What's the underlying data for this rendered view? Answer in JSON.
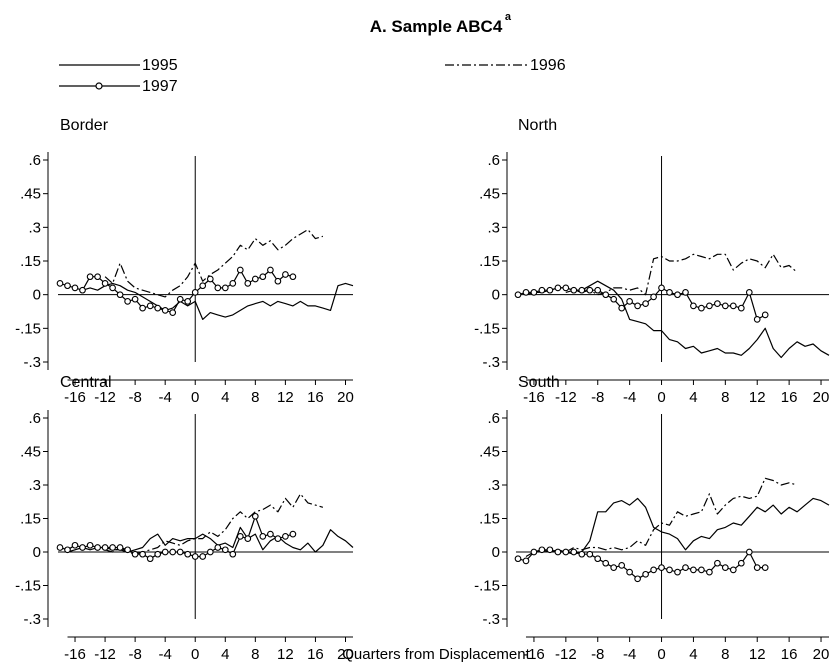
{
  "figure": {
    "title": "A. Sample ABC4",
    "title_superscript": "a",
    "xlabel": "Quarters from Displacement"
  },
  "legend": {
    "position": "top",
    "items": [
      {
        "label": "1995",
        "style": "solid"
      },
      {
        "label": "1996",
        "style": "dash-dot"
      },
      {
        "label": "1997",
        "style": "solid-circle"
      }
    ]
  },
  "chart_data": [
    {
      "type": "line",
      "title": "Border",
      "xlim": [
        -18,
        21
      ],
      "ylim": [
        -0.3,
        0.6
      ],
      "xticks": [
        "-16",
        "-12",
        "-8",
        "-4",
        "0",
        "4",
        "8",
        "12",
        "16",
        "20"
      ],
      "yticks": [
        ".6",
        ".45",
        ".3",
        ".15",
        "0",
        "-.15",
        "-.3"
      ],
      "series": [
        {
          "name": "1995",
          "x": [
            -15,
            -14,
            -13,
            -12,
            -11,
            -10,
            -9,
            -8,
            -7,
            -6,
            -5,
            -4,
            -3,
            -2,
            -1,
            0,
            1,
            2,
            3,
            4,
            5,
            6,
            7,
            8,
            9,
            10,
            11,
            12,
            13,
            14,
            15,
            16,
            17,
            18,
            19,
            20,
            21
          ],
          "y": [
            0.02,
            0.03,
            0.02,
            0.04,
            0.05,
            0.04,
            0.02,
            0.01,
            -0.01,
            -0.03,
            -0.05,
            -0.07,
            -0.06,
            -0.03,
            -0.05,
            -0.03,
            -0.11,
            -0.08,
            -0.09,
            -0.1,
            -0.09,
            -0.07,
            -0.05,
            -0.04,
            -0.03,
            -0.05,
            -0.03,
            -0.04,
            -0.05,
            -0.03,
            -0.05,
            -0.05,
            -0.06,
            -0.07,
            0.04,
            0.05,
            0.04
          ]
        },
        {
          "name": "1996",
          "x": [
            -12,
            -11,
            -10,
            -9,
            -8,
            -7,
            -6,
            -5,
            -4,
            -3,
            -2,
            -1,
            0,
            1,
            2,
            3,
            4,
            5,
            6,
            7,
            8,
            9,
            10,
            11,
            12,
            13,
            14,
            15,
            16,
            17
          ],
          "y": [
            0.08,
            0.05,
            0.14,
            0.06,
            0.03,
            0.02,
            0.01,
            0.0,
            -0.01,
            0.02,
            0.04,
            0.08,
            0.14,
            0.06,
            0.09,
            0.11,
            0.14,
            0.17,
            0.22,
            0.2,
            0.25,
            0.22,
            0.24,
            0.2,
            0.22,
            0.25,
            0.27,
            0.29,
            0.25,
            0.26
          ]
        },
        {
          "name": "1997",
          "x": [
            -18,
            -17,
            -16,
            -15,
            -14,
            -13,
            -12,
            -11,
            -10,
            -9,
            -8,
            -7,
            -6,
            -5,
            -4,
            -3,
            -2,
            -1,
            0,
            1,
            2,
            3,
            4,
            5,
            6,
            7,
            8,
            9,
            10,
            11,
            12,
            13
          ],
          "y": [
            0.05,
            0.04,
            0.03,
            0.02,
            0.08,
            0.08,
            0.05,
            0.03,
            0.0,
            -0.03,
            -0.02,
            -0.06,
            -0.05,
            -0.06,
            -0.07,
            -0.08,
            -0.02,
            -0.03,
            0.01,
            0.04,
            0.07,
            0.03,
            0.03,
            0.05,
            0.11,
            0.05,
            0.07,
            0.08,
            0.11,
            0.06,
            0.09,
            0.08
          ]
        }
      ]
    },
    {
      "type": "line",
      "title": "North",
      "xlim": [
        -18,
        21
      ],
      "ylim": [
        -0.3,
        0.6
      ],
      "xticks": [
        "-16",
        "-12",
        "-8",
        "-4",
        "0",
        "4",
        "8",
        "12",
        "16",
        "20"
      ],
      "yticks": [
        ".6",
        ".45",
        ".3",
        ".15",
        "0",
        "-.15",
        "-.3"
      ],
      "series": [
        {
          "name": "1995",
          "x": [
            -17,
            -16,
            -15,
            -14,
            -13,
            -12,
            -11,
            -10,
            -9,
            -8,
            -7,
            -6,
            -5,
            -4,
            -3,
            -2,
            -1,
            0,
            1,
            2,
            3,
            4,
            5,
            6,
            7,
            8,
            9,
            10,
            11,
            12,
            13,
            14,
            15,
            16,
            17,
            18,
            19,
            20,
            21
          ],
          "y": [
            0.0,
            0.01,
            0.01,
            0.02,
            0.03,
            0.03,
            0.02,
            0.02,
            0.04,
            0.06,
            0.04,
            0.02,
            -0.02,
            -0.11,
            -0.12,
            -0.13,
            -0.16,
            -0.16,
            -0.2,
            -0.21,
            -0.24,
            -0.23,
            -0.26,
            -0.25,
            -0.24,
            -0.26,
            -0.26,
            -0.27,
            -0.24,
            -0.2,
            -0.15,
            -0.24,
            -0.28,
            -0.24,
            -0.21,
            -0.23,
            -0.22,
            -0.25,
            -0.27
          ]
        },
        {
          "name": "1996",
          "x": [
            -12,
            -11,
            -10,
            -9,
            -8,
            -7,
            -6,
            -5,
            -4,
            -3,
            -2,
            -1,
            0,
            1,
            2,
            3,
            4,
            5,
            6,
            7,
            8,
            9,
            10,
            11,
            12,
            13,
            14,
            15,
            16,
            17
          ],
          "y": [
            0.01,
            0.02,
            0.01,
            0.02,
            0.0,
            0.01,
            0.03,
            0.03,
            0.02,
            0.03,
            0.0,
            0.16,
            0.17,
            0.15,
            0.15,
            0.16,
            0.18,
            0.17,
            0.16,
            0.18,
            0.18,
            0.11,
            0.14,
            0.16,
            0.15,
            0.12,
            0.18,
            0.12,
            0.13,
            0.1
          ]
        },
        {
          "name": "1997",
          "x": [
            -18,
            -17,
            -16,
            -15,
            -14,
            -13,
            -12,
            -11,
            -10,
            -9,
            -8,
            -7,
            -6,
            -5,
            -4,
            -3,
            -2,
            -1,
            0,
            1,
            2,
            3,
            4,
            5,
            6,
            7,
            8,
            9,
            10,
            11,
            12,
            13
          ],
          "y": [
            0.0,
            0.01,
            0.01,
            0.02,
            0.02,
            0.03,
            0.03,
            0.02,
            0.02,
            0.02,
            0.02,
            0.0,
            -0.02,
            -0.06,
            -0.03,
            -0.05,
            -0.04,
            -0.01,
            0.03,
            0.01,
            0.0,
            0.01,
            -0.05,
            -0.06,
            -0.05,
            -0.04,
            -0.05,
            -0.05,
            -0.06,
            0.01,
            -0.11,
            -0.09
          ]
        }
      ]
    },
    {
      "type": "line",
      "title": "Central",
      "xlim": [
        -18,
        21
      ],
      "ylim": [
        -0.3,
        0.6
      ],
      "xticks": [
        "-16",
        "-12",
        "-8",
        "-4",
        "0",
        "4",
        "8",
        "12",
        "16",
        "20"
      ],
      "yticks": [
        ".6",
        ".45",
        ".3",
        ".15",
        "0",
        "-.15",
        "-.3"
      ],
      "series": [
        {
          "name": "1995",
          "x": [
            -17,
            -16,
            -15,
            -14,
            -13,
            -12,
            -11,
            -10,
            -9,
            -8,
            -7,
            -6,
            -5,
            -4,
            -3,
            -2,
            -1,
            0,
            1,
            2,
            3,
            4,
            5,
            6,
            7,
            8,
            9,
            10,
            11,
            12,
            13,
            14,
            15,
            16,
            17,
            18,
            19,
            20,
            21
          ],
          "y": [
            0.0,
            0.01,
            0.02,
            0.01,
            0.02,
            0.02,
            0.01,
            0.01,
            0.0,
            0.01,
            0.02,
            0.06,
            0.08,
            0.03,
            0.06,
            0.05,
            0.06,
            0.06,
            0.08,
            0.06,
            0.03,
            0.04,
            0.02,
            0.11,
            0.06,
            0.08,
            0.01,
            0.05,
            0.07,
            0.04,
            0.02,
            0.01,
            0.04,
            0.0,
            0.03,
            0.1,
            0.07,
            0.05,
            0.02
          ]
        },
        {
          "name": "1996",
          "x": [
            -12,
            -11,
            -10,
            -9,
            -8,
            -7,
            -6,
            -5,
            -4,
            -3,
            -2,
            -1,
            0,
            1,
            2,
            3,
            4,
            5,
            6,
            7,
            8,
            9,
            10,
            11,
            12,
            13,
            14,
            15,
            16,
            17
          ],
          "y": [
            0.01,
            0.0,
            0.02,
            0.0,
            -0.01,
            0.0,
            0.01,
            0.02,
            0.05,
            0.04,
            0.03,
            0.05,
            0.06,
            0.06,
            0.09,
            0.07,
            0.1,
            0.15,
            0.18,
            0.15,
            0.18,
            0.19,
            0.21,
            0.18,
            0.24,
            0.2,
            0.26,
            0.22,
            0.21,
            0.2
          ]
        },
        {
          "name": "1997",
          "x": [
            -18,
            -17,
            -16,
            -15,
            -14,
            -13,
            -12,
            -11,
            -10,
            -9,
            -8,
            -7,
            -6,
            -5,
            -4,
            -3,
            -2,
            -1,
            0,
            1,
            2,
            3,
            4,
            5,
            6,
            7,
            8,
            9,
            10,
            11,
            12,
            13
          ],
          "y": [
            0.02,
            0.01,
            0.03,
            0.02,
            0.03,
            0.02,
            0.02,
            0.02,
            0.02,
            0.01,
            -0.01,
            -0.01,
            -0.03,
            -0.01,
            0.0,
            0.0,
            0.0,
            -0.01,
            -0.02,
            -0.02,
            0.0,
            0.02,
            0.01,
            -0.01,
            0.07,
            0.06,
            0.16,
            0.07,
            0.08,
            0.06,
            0.07,
            0.08
          ]
        }
      ]
    },
    {
      "type": "line",
      "title": "South",
      "xlim": [
        -18,
        21
      ],
      "ylim": [
        -0.3,
        0.6
      ],
      "xticks": [
        "-16",
        "-12",
        "-8",
        "-4",
        "0",
        "4",
        "8",
        "12",
        "16",
        "20"
      ],
      "yticks": [
        ".6",
        ".45",
        ".3",
        ".15",
        "0",
        "-.15",
        "-.3"
      ],
      "series": [
        {
          "name": "1995",
          "x": [
            -17,
            -16,
            -15,
            -14,
            -13,
            -12,
            -11,
            -10,
            -9,
            -8,
            -7,
            -6,
            -5,
            -4,
            -3,
            -2,
            -1,
            0,
            1,
            2,
            3,
            4,
            5,
            6,
            7,
            8,
            9,
            10,
            11,
            12,
            13,
            14,
            15,
            16,
            17,
            18,
            19,
            20,
            21
          ],
          "y": [
            -0.02,
            0.0,
            0.01,
            0.0,
            0.01,
            0.0,
            -0.01,
            0.0,
            0.05,
            0.18,
            0.18,
            0.22,
            0.23,
            0.21,
            0.24,
            0.2,
            0.11,
            0.09,
            0.08,
            0.06,
            0.01,
            0.05,
            0.07,
            0.06,
            0.1,
            0.11,
            0.13,
            0.12,
            0.16,
            0.2,
            0.18,
            0.21,
            0.17,
            0.2,
            0.18,
            0.21,
            0.24,
            0.23,
            0.21
          ]
        },
        {
          "name": "1996",
          "x": [
            -12,
            -11,
            -10,
            -9,
            -8,
            -7,
            -6,
            -5,
            -4,
            -3,
            -2,
            -1,
            0,
            1,
            2,
            3,
            4,
            5,
            6,
            7,
            8,
            9,
            10,
            11,
            12,
            13,
            14,
            15,
            16,
            17
          ],
          "y": [
            0.0,
            0.02,
            0.01,
            0.02,
            0.02,
            0.01,
            0.02,
            0.01,
            0.02,
            0.05,
            0.03,
            0.1,
            0.13,
            0.12,
            0.18,
            0.16,
            0.17,
            0.18,
            0.26,
            0.17,
            0.21,
            0.24,
            0.25,
            0.24,
            0.25,
            0.33,
            0.32,
            0.3,
            0.31,
            0.3
          ]
        },
        {
          "name": "1997",
          "x": [
            -18,
            -17,
            -16,
            -15,
            -14,
            -13,
            -12,
            -11,
            -10,
            -9,
            -8,
            -7,
            -6,
            -5,
            -4,
            -3,
            -2,
            -1,
            0,
            1,
            2,
            3,
            4,
            5,
            6,
            7,
            8,
            9,
            10,
            11,
            12,
            13
          ],
          "y": [
            -0.03,
            -0.04,
            0.0,
            0.01,
            0.01,
            0.0,
            0.0,
            0.0,
            -0.01,
            -0.01,
            -0.03,
            -0.05,
            -0.07,
            -0.06,
            -0.09,
            -0.12,
            -0.1,
            -0.08,
            -0.07,
            -0.08,
            -0.09,
            -0.07,
            -0.08,
            -0.08,
            -0.09,
            -0.05,
            -0.07,
            -0.08,
            -0.05,
            0.0,
            -0.07,
            -0.07
          ]
        }
      ]
    }
  ]
}
